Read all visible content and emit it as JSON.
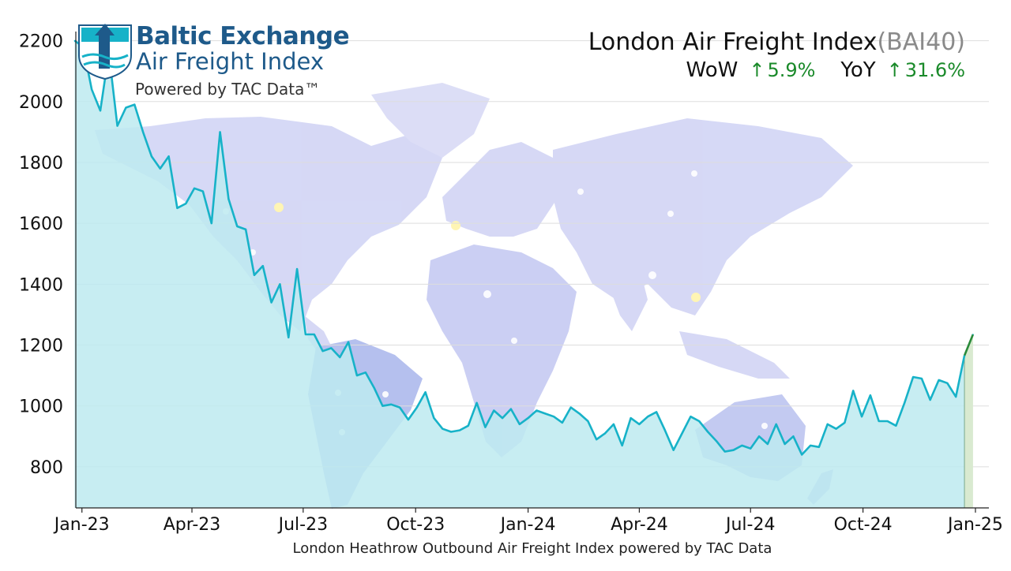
{
  "logo": {
    "title": "Baltic Exchange",
    "subtitle": "Air Freight Index",
    "powered": "Powered by TAC Data™"
  },
  "header": {
    "title": "London Air Freight Index",
    "title_code": "(BAI40)",
    "wow_label": "WoW",
    "wow_arrow": "↑",
    "wow_value": "5.9%",
    "yoy_label": "YoY",
    "yoy_arrow": "↑",
    "yoy_value": "31.6%"
  },
  "caption": "London Heathrow Outbound Air Freight Index powered by TAC Data",
  "colors": {
    "line": "#17b2c8",
    "area": "#bdeaf0",
    "latest_line": "#2a8a3a",
    "latest_area": "#d9ead0",
    "grid": "#dddddd",
    "up": "#1a8a2a",
    "map": "#c9cdf2",
    "map_dots": "#ffffff",
    "map_highlight": "#fff4a8"
  },
  "chart_data": {
    "type": "area",
    "title": "London Air Freight Index",
    "xlabel": "London Heathrow Outbound Air Freight Index powered by TAC Data",
    "ylabel": "",
    "ylim": [
      665,
      2230
    ],
    "xlim": [
      "2022-12-27",
      "2025-01-12"
    ],
    "yticks": [
      800,
      1000,
      1200,
      1400,
      1600,
      1800,
      2000,
      2200
    ],
    "xticks": [
      {
        "date": "2023-01-01",
        "label": "Jan-23"
      },
      {
        "date": "2023-04-01",
        "label": "Apr-23"
      },
      {
        "date": "2023-07-01",
        "label": "Jul-23"
      },
      {
        "date": "2023-10-01",
        "label": "Oct-23"
      },
      {
        "date": "2024-01-01",
        "label": "Jan-24"
      },
      {
        "date": "2024-04-01",
        "label": "Apr-24"
      },
      {
        "date": "2024-07-01",
        "label": "Jul-24"
      },
      {
        "date": "2024-10-01",
        "label": "Oct-24"
      },
      {
        "date": "2025-01-01",
        "label": "Jan-25"
      }
    ],
    "grid": true,
    "legend": "none",
    "series": [
      {
        "points": [
          [
            "2022-12-26",
            2200
          ],
          [
            "2023-01-02",
            2180
          ],
          [
            "2023-01-09",
            2040
          ],
          [
            "2023-01-16",
            1970
          ],
          [
            "2023-01-23",
            2160
          ],
          [
            "2023-01-30",
            1920
          ],
          [
            "2023-02-06",
            1980
          ],
          [
            "2023-02-13",
            1990
          ],
          [
            "2023-02-20",
            1900
          ],
          [
            "2023-02-27",
            1820
          ],
          [
            "2023-03-06",
            1780
          ],
          [
            "2023-03-13",
            1820
          ],
          [
            "2023-03-20",
            1650
          ],
          [
            "2023-03-27",
            1665
          ],
          [
            "2023-04-03",
            1715
          ],
          [
            "2023-04-10",
            1705
          ],
          [
            "2023-04-17",
            1600
          ],
          [
            "2023-04-24",
            1900
          ],
          [
            "2023-05-01",
            1680
          ],
          [
            "2023-05-08",
            1590
          ],
          [
            "2023-05-15",
            1580
          ],
          [
            "2023-05-22",
            1430
          ],
          [
            "2023-05-29",
            1460
          ],
          [
            "2023-06-05",
            1340
          ],
          [
            "2023-06-12",
            1400
          ],
          [
            "2023-06-19",
            1225
          ],
          [
            "2023-06-26",
            1450
          ],
          [
            "2023-07-03",
            1235
          ],
          [
            "2023-07-10",
            1235
          ],
          [
            "2023-07-17",
            1180
          ],
          [
            "2023-07-24",
            1190
          ],
          [
            "2023-07-31",
            1160
          ],
          [
            "2023-08-07",
            1210
          ],
          [
            "2023-08-14",
            1100
          ],
          [
            "2023-08-21",
            1110
          ],
          [
            "2023-08-28",
            1060
          ],
          [
            "2023-09-04",
            1000
          ],
          [
            "2023-09-11",
            1005
          ],
          [
            "2023-09-18",
            995
          ],
          [
            "2023-09-25",
            955
          ],
          [
            "2023-10-02",
            995
          ],
          [
            "2023-10-09",
            1045
          ],
          [
            "2023-10-16",
            960
          ],
          [
            "2023-10-23",
            925
          ],
          [
            "2023-10-30",
            915
          ],
          [
            "2023-11-06",
            920
          ],
          [
            "2023-11-13",
            935
          ],
          [
            "2023-11-20",
            1010
          ],
          [
            "2023-11-27",
            930
          ],
          [
            "2023-12-04",
            985
          ],
          [
            "2023-12-11",
            960
          ],
          [
            "2023-12-18",
            990
          ],
          [
            "2023-12-25",
            940
          ],
          [
            "2024-01-01",
            960
          ],
          [
            "2024-01-08",
            985
          ],
          [
            "2024-01-15",
            975
          ],
          [
            "2024-01-22",
            965
          ],
          [
            "2024-01-29",
            945
          ],
          [
            "2024-02-05",
            995
          ],
          [
            "2024-02-12",
            975
          ],
          [
            "2024-02-19",
            950
          ],
          [
            "2024-02-26",
            890
          ],
          [
            "2024-03-04",
            910
          ],
          [
            "2024-03-11",
            940
          ],
          [
            "2024-03-18",
            870
          ],
          [
            "2024-03-25",
            960
          ],
          [
            "2024-04-01",
            940
          ],
          [
            "2024-04-08",
            965
          ],
          [
            "2024-04-15",
            980
          ],
          [
            "2024-04-22",
            920
          ],
          [
            "2024-04-29",
            855
          ],
          [
            "2024-05-06",
            910
          ],
          [
            "2024-05-13",
            965
          ],
          [
            "2024-05-20",
            950
          ],
          [
            "2024-05-27",
            915
          ],
          [
            "2024-06-03",
            885
          ],
          [
            "2024-06-10",
            850
          ],
          [
            "2024-06-17",
            855
          ],
          [
            "2024-06-24",
            870
          ],
          [
            "2024-07-01",
            860
          ],
          [
            "2024-07-08",
            900
          ],
          [
            "2024-07-15",
            875
          ],
          [
            "2024-07-22",
            940
          ],
          [
            "2024-07-29",
            875
          ],
          [
            "2024-08-05",
            900
          ],
          [
            "2024-08-12",
            840
          ],
          [
            "2024-08-19",
            870
          ],
          [
            "2024-08-26",
            865
          ],
          [
            "2024-09-02",
            940
          ],
          [
            "2024-09-09",
            925
          ],
          [
            "2024-09-16",
            945
          ],
          [
            "2024-09-23",
            1050
          ],
          [
            "2024-09-30",
            965
          ],
          [
            "2024-10-07",
            1035
          ],
          [
            "2024-10-14",
            950
          ],
          [
            "2024-10-21",
            950
          ],
          [
            "2024-10-28",
            935
          ],
          [
            "2024-11-04",
            1010
          ],
          [
            "2024-11-11",
            1095
          ],
          [
            "2024-11-18",
            1090
          ],
          [
            "2024-11-25",
            1020
          ],
          [
            "2024-12-02",
            1085
          ],
          [
            "2024-12-09",
            1075
          ],
          [
            "2024-12-16",
            1030
          ],
          [
            "2024-12-23",
            1165
          ],
          [
            "2024-12-30",
            1235
          ]
        ]
      }
    ]
  }
}
